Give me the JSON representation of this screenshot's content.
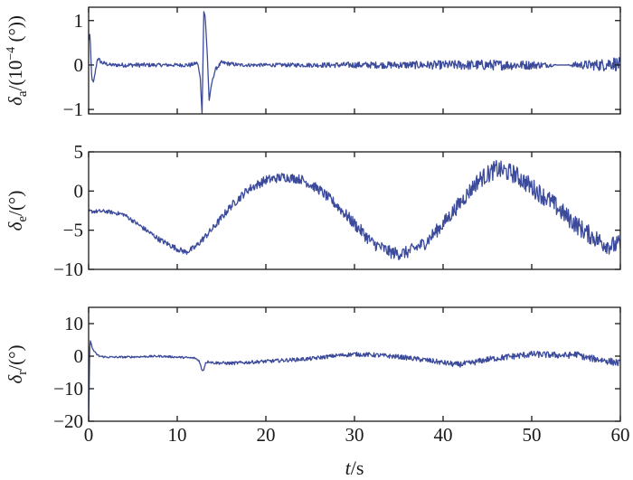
{
  "chart_data": [
    {
      "type": "line",
      "id": "aileron",
      "ylabel_symbol": "δ",
      "ylabel_sub": "a",
      "ylabel_unit_prefix": "/(10",
      "ylabel_unit_exp": "−4",
      "ylabel_unit_suffix": " (°))",
      "xlim": [
        0,
        60
      ],
      "ylim": [
        -1.1,
        1.3
      ],
      "yticks": [
        -1,
        0,
        1
      ],
      "yticklabels": [
        "−1",
        "0",
        "1"
      ],
      "xticks": [
        0,
        10,
        20,
        30,
        40,
        50,
        60
      ],
      "show_xticklabels": false,
      "color": "#3b4a9a",
      "series": [
        {
          "x": [
            0,
            0.15,
            0.35,
            0.55,
            0.8,
            1.0,
            1.5,
            2.5,
            4,
            6,
            8,
            10,
            11.5,
            12.3,
            12.6,
            12.8,
            13.0,
            13.15,
            13.4,
            13.6,
            13.9,
            14.3,
            15,
            17,
            20,
            25,
            30,
            35,
            40,
            45,
            50,
            52,
            53,
            54,
            55,
            56,
            57,
            58,
            59,
            60
          ],
          "y": [
            0.55,
            0.7,
            -0.3,
            -0.4,
            -0.1,
            0.15,
            0.05,
            0.0,
            0.0,
            0.0,
            0.0,
            0.0,
            0.0,
            0.05,
            -0.3,
            -1.1,
            1.2,
            1.1,
            0.2,
            -0.8,
            -0.4,
            -0.1,
            0.05,
            0.0,
            0.0,
            0.0,
            0.0,
            0.0,
            0.0,
            0.0,
            0.0,
            0.0,
            0.0,
            0.0,
            0.0,
            0.0,
            0.0,
            0.0,
            0.05,
            0.0
          ],
          "noise": [
            0.02,
            0.02,
            0.02,
            0.02,
            0.04,
            0.05,
            0.05,
            0.04,
            0.05,
            0.05,
            0.04,
            0.04,
            0.05,
            0.03,
            0.02,
            0.02,
            0.02,
            0.02,
            0.02,
            0.02,
            0.02,
            0.04,
            0.05,
            0.04,
            0.04,
            0.05,
            0.07,
            0.08,
            0.1,
            0.12,
            0.1,
            0.05,
            0.0,
            0.0,
            0.08,
            0.1,
            0.12,
            0.14,
            0.16,
            0.16
          ]
        }
      ]
    },
    {
      "type": "line",
      "id": "elevator",
      "ylabel_symbol": "δ",
      "ylabel_sub": "e",
      "ylabel_unit_prefix": "/(°)",
      "ylabel_unit_exp": "",
      "ylabel_unit_suffix": "",
      "xlim": [
        0,
        60
      ],
      "ylim": [
        -10,
        5
      ],
      "yticks": [
        -10,
        -5,
        0,
        5
      ],
      "yticklabels": [
        "−10",
        "−5",
        "0",
        "5"
      ],
      "xticks": [
        0,
        10,
        20,
        30,
        40,
        50,
        60
      ],
      "show_xticklabels": false,
      "color": "#3b4a9a",
      "series": [
        {
          "x": [
            0,
            2,
            4,
            6,
            8,
            10,
            11,
            12,
            14,
            16,
            18,
            20,
            22,
            24,
            26,
            28,
            30,
            32,
            34,
            35,
            36,
            38,
            40,
            42,
            44,
            46,
            48,
            50,
            52,
            54,
            56,
            58,
            59,
            60
          ],
          "y": [
            -2.6,
            -2.6,
            -3.0,
            -4.6,
            -6.2,
            -7.4,
            -7.8,
            -7.2,
            -4.8,
            -2.0,
            0.2,
            1.4,
            1.8,
            1.5,
            0.2,
            -1.8,
            -4.2,
            -6.6,
            -7.8,
            -8.0,
            -7.8,
            -6.6,
            -4.2,
            -1.4,
            1.4,
            2.8,
            2.2,
            0.5,
            -1.2,
            -3.3,
            -5.2,
            -6.6,
            -7.0,
            -6.8
          ],
          "noise": [
            0.25,
            0.25,
            0.25,
            0.3,
            0.35,
            0.35,
            0.35,
            0.4,
            0.45,
            0.5,
            0.55,
            0.6,
            0.6,
            0.6,
            0.65,
            0.7,
            0.8,
            0.8,
            0.8,
            0.8,
            0.8,
            0.85,
            0.9,
            1.0,
            1.1,
            1.2,
            1.2,
            1.2,
            1.2,
            1.2,
            1.2,
            1.2,
            1.2,
            1.2
          ]
        }
      ]
    },
    {
      "type": "line",
      "id": "rudder",
      "ylabel_symbol": "δ",
      "ylabel_sub": "r",
      "ylabel_unit_prefix": "/(°)",
      "ylabel_unit_exp": "",
      "ylabel_unit_suffix": "",
      "xlim": [
        0,
        60
      ],
      "ylim": [
        -20,
        15
      ],
      "yticks": [
        -20,
        -10,
        0,
        10
      ],
      "yticklabels": [
        "−20",
        "−10",
        "0",
        "10"
      ],
      "xticks": [
        0,
        10,
        20,
        30,
        40,
        50,
        60
      ],
      "xticklabels": [
        "0",
        "10",
        "20",
        "30",
        "40",
        "50",
        "60"
      ],
      "show_xticklabels": true,
      "xlabel_symbol": "t",
      "xlabel_unit": "/s",
      "color": "#3b4a9a",
      "series": [
        {
          "x": [
            0,
            0.15,
            0.4,
            0.8,
            1.2,
            2,
            4,
            8,
            10,
            12,
            12.5,
            12.8,
            13.0,
            13.2,
            13.6,
            14,
            16,
            20,
            25,
            28,
            30,
            32,
            35,
            38,
            40,
            41.5,
            43,
            45,
            48,
            50,
            52,
            54,
            55,
            55.5,
            56,
            58,
            60
          ],
          "y": [
            -20,
            5.5,
            2.5,
            0.8,
            0.0,
            -0.3,
            -0.3,
            0.0,
            -0.3,
            -0.6,
            -1.5,
            -4.5,
            -4.0,
            -2.0,
            -1.6,
            -2.0,
            -2.2,
            -1.6,
            -0.8,
            0.2,
            0.6,
            0.4,
            -0.2,
            -1.2,
            -2.0,
            -2.6,
            -2.2,
            -1.0,
            0.0,
            0.6,
            0.4,
            0.2,
            0.6,
            0.2,
            -0.4,
            -1.2,
            -2.2
          ],
          "noise": [
            0.0,
            0.2,
            0.3,
            0.3,
            0.3,
            0.3,
            0.3,
            0.3,
            0.3,
            0.3,
            0.3,
            0.3,
            0.3,
            0.3,
            0.4,
            0.45,
            0.5,
            0.55,
            0.6,
            0.6,
            0.65,
            0.7,
            0.7,
            0.8,
            0.8,
            0.9,
            0.9,
            0.9,
            1.0,
            1.0,
            1.0,
            1.0,
            1.0,
            1.0,
            1.0,
            1.1,
            1.1
          ]
        }
      ]
    }
  ]
}
